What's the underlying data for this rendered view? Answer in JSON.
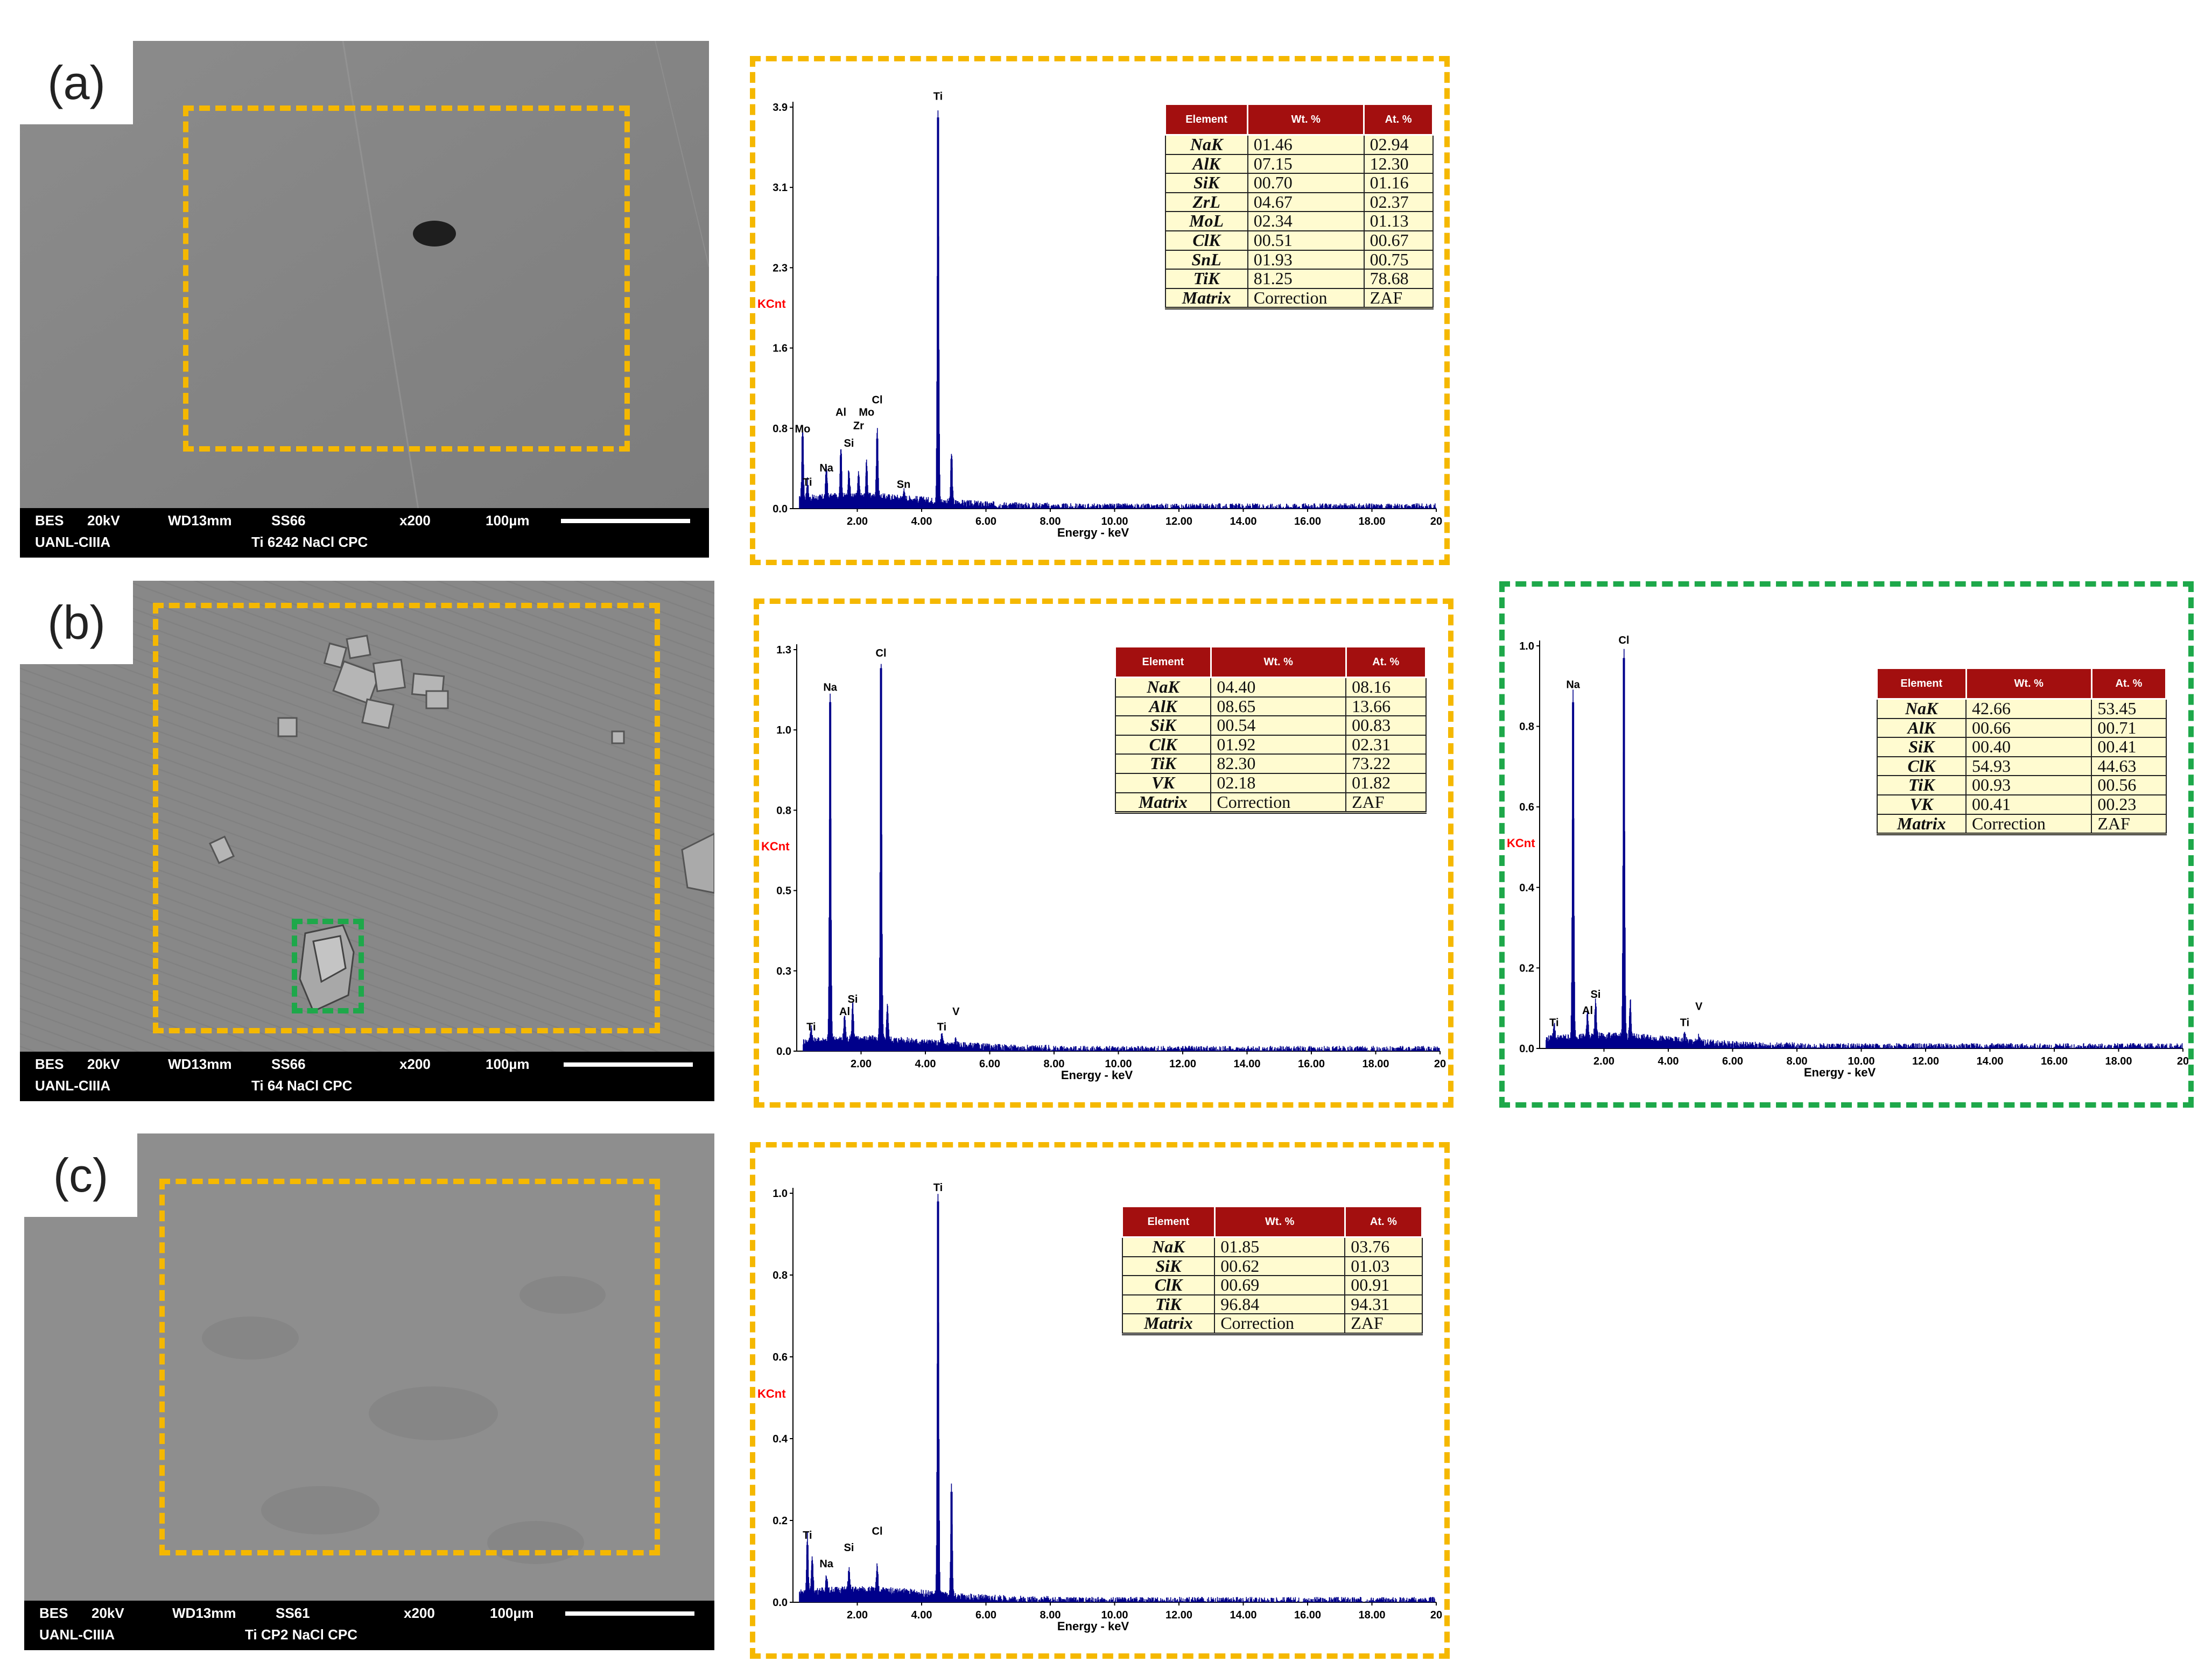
{
  "colors": {
    "roi_main": "#f5b800",
    "roi_particle": "#1ea84a",
    "spectrum": "#00008b",
    "table_header": "#a30f0f",
    "table_cell": "#fffbd0",
    "ylabel": "#ff0000"
  },
  "panels": [
    {
      "label": "(a)",
      "sem": {
        "bar_line1": [
          "BES",
          "20kV",
          "WD13mm",
          "SS66",
          "x200",
          "100µm"
        ],
        "bar_line2": [
          "UANL-CIIIA",
          "Ti 6242 NaCl CPC"
        ]
      }
    },
    {
      "label": "(b)",
      "sem": {
        "bar_line1": [
          "BES",
          "20kV",
          "WD13mm",
          "SS66",
          "x200",
          "100µm"
        ],
        "bar_line2": [
          "UANL-CIIIA",
          "Ti 64 NaCl CPC"
        ]
      }
    },
    {
      "label": "(c)",
      "sem": {
        "bar_line1": [
          "BES",
          "20kV",
          "WD13mm",
          "SS61",
          "x200",
          "100µm"
        ],
        "bar_line2": [
          "UANL-CIIIA",
          "Ti CP2 NaCl CPC"
        ]
      }
    }
  ],
  "chart_data": [
    {
      "type": "line",
      "id": "spectrum-a",
      "frame": "main",
      "xlabel": "Energy - keV",
      "ylabel": "KCnt",
      "xlim": [
        0,
        20
      ],
      "ylim": [
        0,
        3.9
      ],
      "x_ticks": [
        "2.00",
        "4.00",
        "6.00",
        "8.00",
        "10.00",
        "12.00",
        "14.00",
        "16.00",
        "18.00",
        "20"
      ],
      "y_ticks": [
        "0.0",
        "0.8",
        "1.6",
        "2.3",
        "3.1",
        "3.9"
      ],
      "peaks": [
        {
          "x": 0.3,
          "y": 0.7
        },
        {
          "x": 0.45,
          "y": 0.18
        },
        {
          "x": 1.04,
          "y": 0.3
        },
        {
          "x": 1.49,
          "y": 0.5
        },
        {
          "x": 1.74,
          "y": 0.28
        },
        {
          "x": 2.04,
          "y": 0.22
        },
        {
          "x": 2.29,
          "y": 0.35
        },
        {
          "x": 2.62,
          "y": 0.68
        },
        {
          "x": 3.44,
          "y": 0.08
        },
        {
          "x": 4.51,
          "y": 3.8
        },
        {
          "x": 4.93,
          "y": 0.48
        }
      ],
      "peak_labels": [
        {
          "text": "Mo",
          "x": 0.3,
          "y": 0.72
        },
        {
          "text": "Ti",
          "x": 0.45,
          "y": 0.2
        },
        {
          "text": "Na",
          "x": 1.04,
          "y": 0.34
        },
        {
          "text": "Al",
          "x": 1.49,
          "y": 0.88
        },
        {
          "text": "Si",
          "x": 1.74,
          "y": 0.58
        },
        {
          "text": "Zr",
          "x": 2.04,
          "y": 0.75
        },
        {
          "text": "Mo",
          "x": 2.29,
          "y": 0.88
        },
        {
          "text": "Cl",
          "x": 2.62,
          "y": 1.0
        },
        {
          "text": "Sn",
          "x": 3.44,
          "y": 0.18
        },
        {
          "text": "Ti",
          "x": 4.51,
          "y": 3.95
        }
      ],
      "table": {
        "headers": [
          "Element",
          "Wt. %",
          "At. %"
        ],
        "rows": [
          [
            "NaK",
            "01.46",
            "02.94"
          ],
          [
            "AlK",
            "07.15",
            "12.30"
          ],
          [
            "SiK",
            "00.70",
            "01.16"
          ],
          [
            "ZrL",
            "04.67",
            "02.37"
          ],
          [
            "MoL",
            "02.34",
            "01.13"
          ],
          [
            "ClK",
            "00.51",
            "00.67"
          ],
          [
            "SnL",
            "01.93",
            "00.75"
          ],
          [
            "TiK",
            "81.25",
            "78.68"
          ],
          [
            "Matrix",
            "Correction",
            "ZAF"
          ]
        ]
      }
    },
    {
      "type": "line",
      "id": "spectrum-b",
      "frame": "main",
      "xlabel": "Energy - keV",
      "ylabel": "KCnt",
      "xlim": [
        0,
        20
      ],
      "ylim": [
        0,
        1.3
      ],
      "x_ticks": [
        "2.00",
        "4.00",
        "6.00",
        "8.00",
        "10.00",
        "12.00",
        "14.00",
        "16.00",
        "18.00",
        "20"
      ],
      "y_ticks": [
        "0.0",
        "0.3",
        "0.5",
        "0.8",
        "1.0",
        "1.3"
      ],
      "peaks": [
        {
          "x": 0.45,
          "y": 0.05
        },
        {
          "x": 1.04,
          "y": 1.13
        },
        {
          "x": 1.49,
          "y": 0.08
        },
        {
          "x": 1.74,
          "y": 0.12
        },
        {
          "x": 2.62,
          "y": 1.24
        },
        {
          "x": 2.82,
          "y": 0.12
        },
        {
          "x": 4.51,
          "y": 0.03
        },
        {
          "x": 4.95,
          "y": 0.02
        }
      ],
      "peak_labels": [
        {
          "text": "Ti",
          "x": 0.45,
          "y": 0.06
        },
        {
          "text": "Na",
          "x": 1.04,
          "y": 1.16
        },
        {
          "text": "Al",
          "x": 1.49,
          "y": 0.11
        },
        {
          "text": "Si",
          "x": 1.74,
          "y": 0.15
        },
        {
          "text": "Cl",
          "x": 2.62,
          "y": 1.27
        },
        {
          "text": "Ti",
          "x": 4.51,
          "y": 0.06
        },
        {
          "text": "V",
          "x": 4.95,
          "y": 0.11
        }
      ],
      "table": {
        "headers": [
          "Element",
          "Wt. %",
          "At. %"
        ],
        "rows": [
          [
            "NaK",
            "04.40",
            "08.16"
          ],
          [
            "AlK",
            "08.65",
            "13.66"
          ],
          [
            "SiK",
            "00.54",
            "00.83"
          ],
          [
            "ClK",
            "01.92",
            "02.31"
          ],
          [
            "TiK",
            "82.30",
            "73.22"
          ],
          [
            "VK",
            "02.18",
            "01.82"
          ],
          [
            "Matrix",
            "Correction",
            "ZAF"
          ]
        ]
      }
    },
    {
      "type": "line",
      "id": "spectrum-b-particle",
      "frame": "particle",
      "xlabel": "Energy - keV",
      "ylabel": "KCnt",
      "xlim": [
        0,
        20
      ],
      "ylim": [
        0,
        1.0
      ],
      "x_ticks": [
        "2.00",
        "4.00",
        "6.00",
        "8.00",
        "10.00",
        "12.00",
        "14.00",
        "16.00",
        "18.00",
        "20"
      ],
      "y_ticks": [
        "0.0",
        "0.2",
        "0.4",
        "0.6",
        "0.8",
        "1.0"
      ],
      "peaks": [
        {
          "x": 0.45,
          "y": 0.04
        },
        {
          "x": 1.04,
          "y": 0.86
        },
        {
          "x": 1.49,
          "y": 0.06
        },
        {
          "x": 1.74,
          "y": 0.09
        },
        {
          "x": 2.62,
          "y": 0.97
        },
        {
          "x": 2.82,
          "y": 0.09
        },
        {
          "x": 4.51,
          "y": 0.02
        },
        {
          "x": 4.95,
          "y": 0.015
        }
      ],
      "peak_labels": [
        {
          "text": "Ti",
          "x": 0.45,
          "y": 0.05
        },
        {
          "text": "Na",
          "x": 1.04,
          "y": 0.89
        },
        {
          "text": "Al",
          "x": 1.49,
          "y": 0.08
        },
        {
          "text": "Si",
          "x": 1.74,
          "y": 0.12
        },
        {
          "text": "Cl",
          "x": 2.62,
          "y": 1.0
        },
        {
          "text": "Ti",
          "x": 4.51,
          "y": 0.05
        },
        {
          "text": "V",
          "x": 4.95,
          "y": 0.09
        }
      ],
      "table": {
        "headers": [
          "Element",
          "Wt. %",
          "At. %"
        ],
        "rows": [
          [
            "NaK",
            "42.66",
            "53.45"
          ],
          [
            "AlK",
            "00.66",
            "00.71"
          ],
          [
            "SiK",
            "00.40",
            "00.41"
          ],
          [
            "ClK",
            "54.93",
            "44.63"
          ],
          [
            "TiK",
            "00.93",
            "00.56"
          ],
          [
            "VK",
            "00.41",
            "00.23"
          ],
          [
            "Matrix",
            "Correction",
            "ZAF"
          ]
        ]
      }
    },
    {
      "type": "line",
      "id": "spectrum-c",
      "frame": "main",
      "xlabel": "Energy - keV",
      "ylabel": "KCnt",
      "xlim": [
        0,
        20
      ],
      "ylim": [
        0,
        1.0
      ],
      "x_ticks": [
        "2.00",
        "4.00",
        "6.00",
        "8.00",
        "10.00",
        "12.00",
        "14.00",
        "16.00",
        "18.00",
        "20"
      ],
      "y_ticks": [
        "0.0",
        "0.2",
        "0.4",
        "0.6",
        "0.8",
        "1.0"
      ],
      "peaks": [
        {
          "x": 0.45,
          "y": 0.14
        },
        {
          "x": 0.6,
          "y": 0.09
        },
        {
          "x": 1.04,
          "y": 0.04
        },
        {
          "x": 1.74,
          "y": 0.05
        },
        {
          "x": 2.62,
          "y": 0.06
        },
        {
          "x": 4.51,
          "y": 0.98
        },
        {
          "x": 4.93,
          "y": 0.27
        }
      ],
      "peak_labels": [
        {
          "text": "Ti",
          "x": 0.45,
          "y": 0.15
        },
        {
          "text": "Na",
          "x": 1.04,
          "y": 0.08
        },
        {
          "text": "Si",
          "x": 1.74,
          "y": 0.12
        },
        {
          "text": "Cl",
          "x": 2.62,
          "y": 0.16
        },
        {
          "text": "Ti",
          "x": 4.51,
          "y": 1.0
        }
      ],
      "table": {
        "headers": [
          "Element",
          "Wt. %",
          "At. %"
        ],
        "rows": [
          [
            "NaK",
            "01.85",
            "03.76"
          ],
          [
            "SiK",
            "00.62",
            "01.03"
          ],
          [
            "ClK",
            "00.69",
            "00.91"
          ],
          [
            "TiK",
            "96.84",
            "94.31"
          ],
          [
            "Matrix",
            "Correction",
            "ZAF"
          ]
        ]
      }
    }
  ]
}
